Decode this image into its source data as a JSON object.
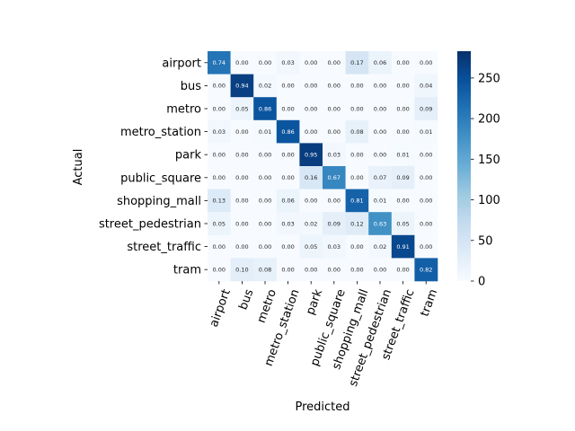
{
  "chart_data": {
    "type": "heatmap",
    "title": "",
    "xlabel": "Predicted",
    "ylabel": "Actual",
    "labels": [
      "airport",
      "bus",
      "metro",
      "metro_station",
      "park",
      "public_square",
      "shopping_mall",
      "street_pedestrian",
      "street_traffic",
      "tram"
    ],
    "values": [
      [
        "0.74",
        "0.00",
        "0.00",
        "0.03",
        "0.00",
        "0.00",
        "0.17",
        "0.06",
        "0.00",
        "0.00"
      ],
      [
        "0.00",
        "0.94",
        "0.02",
        "0.00",
        "0.00",
        "0.00",
        "0.00",
        "0.00",
        "0.00",
        "0.04"
      ],
      [
        "0.00",
        "0.05",
        "0.86",
        "0.00",
        "0.00",
        "0.00",
        "0.00",
        "0.00",
        "0.00",
        "0.09"
      ],
      [
        "0.03",
        "0.00",
        "0.01",
        "0.86",
        "0.00",
        "0.00",
        "0.08",
        "0.00",
        "0.00",
        "0.01"
      ],
      [
        "0.00",
        "0.00",
        "0.00",
        "0.00",
        "0.95",
        "0.03",
        "0.00",
        "0.00",
        "0.01",
        "0.00"
      ],
      [
        "0.00",
        "0.00",
        "0.00",
        "0.00",
        "0.16",
        "0.67",
        "0.00",
        "0.07",
        "0.09",
        "0.00"
      ],
      [
        "0.13",
        "0.00",
        "0.00",
        "0.06",
        "0.00",
        "0.00",
        "0.81",
        "0.01",
        "0.00",
        "0.00"
      ],
      [
        "0.05",
        "0.00",
        "0.00",
        "0.03",
        "0.02",
        "0.09",
        "0.12",
        "0.63",
        "0.05",
        "0.00"
      ],
      [
        "0.00",
        "0.00",
        "0.00",
        "0.00",
        "0.05",
        "0.03",
        "0.00",
        "0.02",
        "0.91",
        "0.00"
      ],
      [
        "0.00",
        "0.10",
        "0.08",
        "0.00",
        "0.00",
        "0.00",
        "0.00",
        "0.00",
        "0.00",
        "0.82"
      ]
    ],
    "colorbar": {
      "min": 0,
      "max": 283,
      "ticks": [
        "0",
        "50",
        "100",
        "150",
        "200",
        "250"
      ],
      "colormap": "Blues"
    },
    "colors": {
      "low": "#f7fbff",
      "high": "#08306b"
    }
  }
}
